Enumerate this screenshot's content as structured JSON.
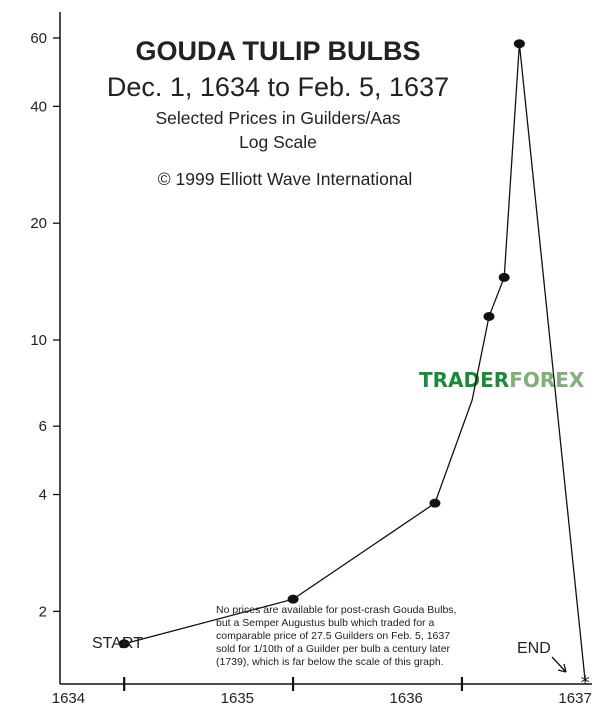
{
  "chart_data": {
    "type": "line",
    "title": "GOUDA TULIP BULBS",
    "subtitle": "Dec. 1, 1634 to Feb. 5, 1637",
    "subtitle_lines": [
      "Selected Prices in Guilders/Aas",
      "Log Scale"
    ],
    "copyright": "© 1999 Elliott Wave International",
    "y_scale": "log",
    "ylim": [
      1.3,
      70
    ],
    "xlim": [
      1633.95,
      1637.1
    ],
    "y_ticks": [
      2,
      4,
      6,
      10,
      20,
      40,
      60
    ],
    "y_tick_labels": [
      "2",
      "4",
      "6",
      "10",
      "20",
      "40",
      "60"
    ],
    "x_ticks": [
      1634,
      1635,
      1636,
      1637
    ],
    "x_tick_labels": [
      "1634",
      "1635",
      "1636",
      "1637"
    ],
    "x_minor_ticks": [
      1634.33,
      1635.33,
      1636.33
    ],
    "grid": false,
    "legend": "none",
    "line_color": "#111111",
    "series": [
      {
        "points": [
          {
            "x": 1634.33,
            "y": 1.65,
            "marker": "dot"
          },
          {
            "x": 1635.33,
            "y": 2.15,
            "marker": "dot"
          },
          {
            "x": 1636.17,
            "y": 3.8,
            "marker": "dot"
          },
          {
            "x": 1636.39,
            "y": 7.0,
            "marker": "none"
          },
          {
            "x": 1636.49,
            "y": 11.5,
            "marker": "dot"
          },
          {
            "x": 1636.58,
            "y": 14.5,
            "marker": "dot"
          },
          {
            "x": 1636.67,
            "y": 58,
            "marker": "dot"
          },
          {
            "x": 1637.06,
            "y": 1.32,
            "marker": "star"
          }
        ]
      }
    ],
    "annotations": {
      "start": "START",
      "end": "END",
      "note_lines": [
        "No prices are available for post-crash Gouda Bulbs,",
        "but a Semper Augustus bulb which traded for a",
        "comparable price of 27.5 Guilders on Feb. 5, 1637",
        "sold for 1/10th of a Guilder per bulb a century later",
        "(1739), which is far below the scale of this graph."
      ]
    }
  },
  "watermark": {
    "part1": "TRADER",
    "part2": "FOREX",
    "color1": "#1d8a3a",
    "color2": "#7fb07a"
  }
}
